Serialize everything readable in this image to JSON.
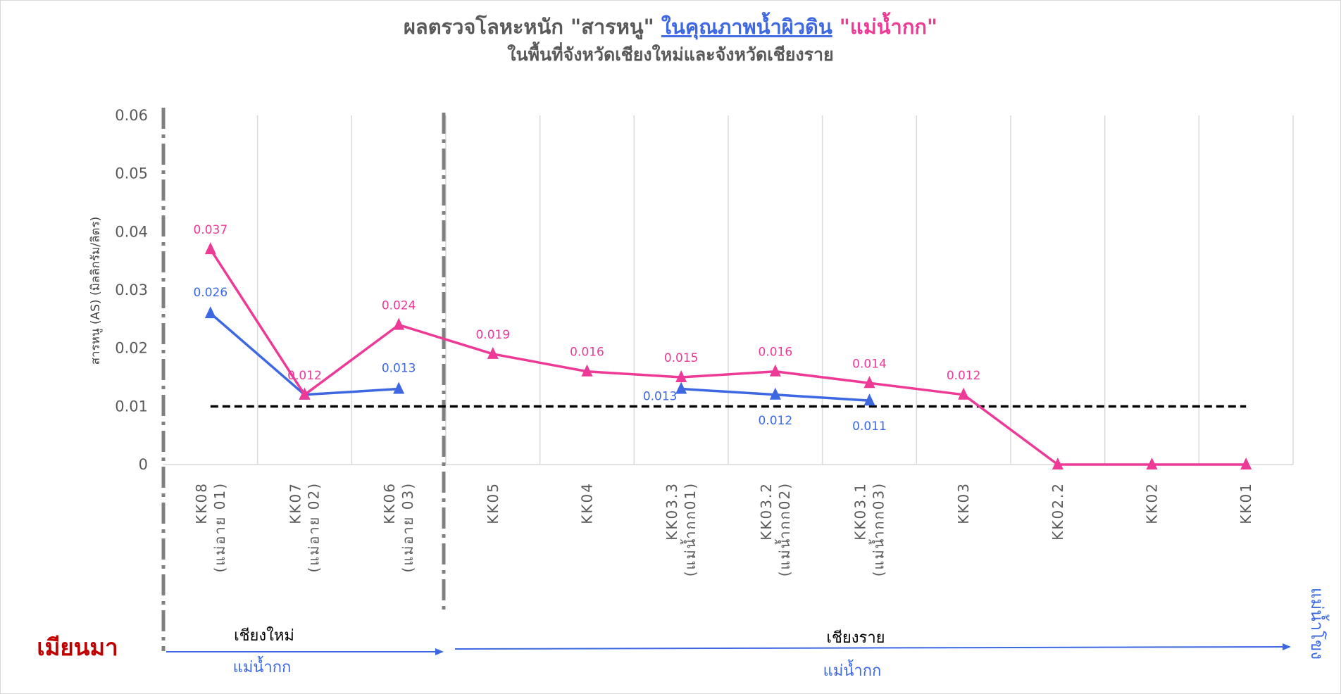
{
  "title": {
    "part1": "ผลตรวจโลหะหนัก \"สารหนู\" ",
    "part2": "ในคุณภาพน้ำผิวดิน",
    "part3": " \"แม่น้ำกก\"",
    "subtitle": "ในพื้นที่จังหวัดเชียงใหม่และจังหวัดเชียงราย"
  },
  "colors": {
    "pink": "#ec3a96",
    "blue": "#3d68e1",
    "grey_text": "#595959",
    "myanmar": "#c00000"
  },
  "chart_data": {
    "type": "line",
    "ylabel": "สารหนู (AS) (มิลลิกรัม/ลิตร)",
    "ylim": [
      0,
      0.06
    ],
    "yticks": [
      "0",
      "0.01",
      "0.02",
      "0.03",
      "0.04",
      "0.05",
      "0.06"
    ],
    "categories": [
      [
        "KK08",
        "(แม่อาย 01)"
      ],
      [
        "KK07",
        "(แม่อาย 02)"
      ],
      [
        "KK06",
        "(แม่อาย 03)"
      ],
      [
        "KK05"
      ],
      [
        "KK04"
      ],
      [
        "KK03.3",
        "(แม่น้ำกก01)"
      ],
      [
        "KK03.2",
        "(แม่น้ำกก02)"
      ],
      [
        "KK03.1",
        "(แม่น้ำกก03)"
      ],
      [
        "KK03"
      ],
      [
        "KK02.2"
      ],
      [
        "KK02"
      ],
      [
        "KK01"
      ]
    ],
    "series": [
      {
        "color": "#ec3a96",
        "values": [
          0.037,
          0.012,
          0.024,
          0.019,
          0.016,
          0.015,
          0.016,
          0.014,
          0.012,
          0,
          0,
          0
        ],
        "labels": [
          "0.037",
          "0.012",
          "0.024",
          "0.019",
          "0.016",
          "0.015",
          "0.016",
          "0.014",
          "0.012",
          "",
          "",
          ""
        ]
      },
      {
        "color": "#3d68e1",
        "values": [
          0.026,
          0.012,
          0.013,
          null,
          null,
          0.013,
          0.012,
          0.011,
          null,
          null,
          null,
          null
        ],
        "labels": [
          "0.026",
          "",
          "0.013",
          "",
          "",
          "0.013",
          "0.012",
          "0.011",
          "",
          "",
          "",
          ""
        ]
      }
    ],
    "standard_line": 0.01,
    "grid": "vertical"
  },
  "annotations": {
    "myanmar": "เมียนมา",
    "chiangmai": "เชียงใหม่",
    "chiangrai": "เชียงราย",
    "river_left": "แม่น้ำกก",
    "river_right": "แม่น้ำกก",
    "mekong": "แม่น้ำโขง"
  }
}
